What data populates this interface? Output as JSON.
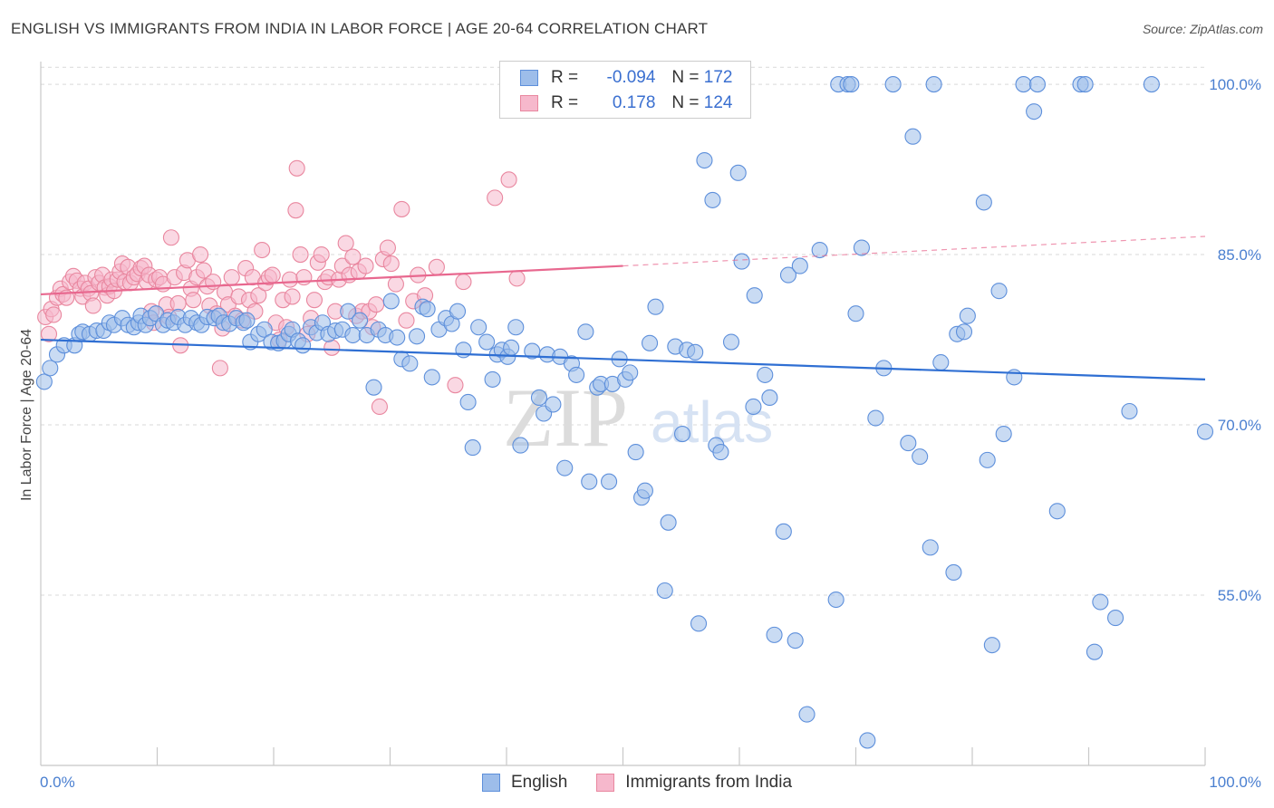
{
  "title": "ENGLISH VS IMMIGRANTS FROM INDIA IN LABOR FORCE | AGE 20-64 CORRELATION CHART",
  "source": "Source: ZipAtlas.com",
  "legend": {
    "rows": [
      {
        "r_label": "R =",
        "r_value": "-0.094",
        "n_label": "N =",
        "n_value": "172"
      },
      {
        "r_label": "R =",
        "r_value": "0.178",
        "n_label": "N =",
        "n_value": "124"
      }
    ]
  },
  "watermark": {
    "main": "ZIP",
    "sub": "atlas"
  },
  "colors": {
    "english_fill": "#9dbdea",
    "english_stroke": "#5d8fdb",
    "english_line": "#2f6fd3",
    "india_fill": "#f6b8cc",
    "india_stroke": "#e9879f",
    "india_line": "#e8688f",
    "grid": "#d9d9d9",
    "tick_text": "#4a7fd0"
  },
  "chart_data": {
    "type": "scatter",
    "title": "ENGLISH VS IMMIGRANTS FROM INDIA IN LABOR FORCE | AGE 20-64 CORRELATION CHART",
    "xlabel": "",
    "ylabel": "In Labor Force | Age 20-64",
    "xlim": [
      0,
      100
    ],
    "ylim": [
      40,
      102
    ],
    "x_tick_labels": [
      "0.0%",
      "100.0%"
    ],
    "y_ticks": [
      55,
      70,
      85,
      100
    ],
    "y_tick_labels": [
      "55.0%",
      "70.0%",
      "85.0%",
      "100.0%"
    ],
    "grid": "horizontal dashed",
    "legend_position": "top-center",
    "series": [
      {
        "name": "English",
        "r": -0.094,
        "n": 172,
        "trend": {
          "x": [
            0,
            100
          ],
          "y": [
            77.5,
            74.0
          ]
        },
        "points": [
          [
            0.3,
            73.8
          ],
          [
            0.8,
            75.0
          ],
          [
            1.4,
            76.2
          ],
          [
            2.0,
            77.0
          ],
          [
            2.9,
            77.0
          ],
          [
            3.3,
            78.0
          ],
          [
            3.6,
            78.2
          ],
          [
            4.2,
            78.0
          ],
          [
            4.8,
            78.3
          ],
          [
            5.4,
            78.3
          ],
          [
            5.9,
            79.0
          ],
          [
            6.3,
            78.8
          ],
          [
            7.0,
            79.4
          ],
          [
            7.5,
            78.8
          ],
          [
            8.0,
            78.6
          ],
          [
            8.4,
            79.0
          ],
          [
            8.6,
            79.6
          ],
          [
            9.0,
            78.8
          ],
          [
            9.4,
            79.4
          ],
          [
            9.9,
            79.8
          ],
          [
            10.5,
            78.8
          ],
          [
            10.9,
            79.2
          ],
          [
            11.4,
            79.0
          ],
          [
            11.8,
            79.5
          ],
          [
            12.4,
            78.8
          ],
          [
            12.9,
            79.4
          ],
          [
            13.4,
            79.0
          ],
          [
            13.8,
            78.8
          ],
          [
            14.3,
            79.5
          ],
          [
            14.9,
            79.4
          ],
          [
            15.3,
            79.6
          ],
          [
            15.7,
            79.0
          ],
          [
            16.2,
            78.9
          ],
          [
            16.8,
            79.4
          ],
          [
            17.4,
            79.0
          ],
          [
            17.7,
            79.2
          ],
          [
            18.0,
            77.3
          ],
          [
            18.7,
            78.0
          ],
          [
            19.2,
            78.4
          ],
          [
            19.8,
            77.3
          ],
          [
            20.4,
            77.2
          ],
          [
            20.9,
            77.4
          ],
          [
            21.3,
            78.0
          ],
          [
            21.6,
            78.4
          ],
          [
            22.1,
            77.4
          ],
          [
            22.5,
            77.0
          ],
          [
            23.2,
            78.6
          ],
          [
            23.7,
            78.1
          ],
          [
            24.2,
            79.0
          ],
          [
            24.7,
            78.0
          ],
          [
            25.3,
            78.3
          ],
          [
            25.9,
            78.4
          ],
          [
            26.4,
            80.0
          ],
          [
            26.8,
            77.9
          ],
          [
            27.4,
            79.2
          ],
          [
            28.0,
            77.9
          ],
          [
            28.6,
            73.3
          ],
          [
            29.0,
            78.4
          ],
          [
            29.6,
            77.9
          ],
          [
            30.1,
            80.9
          ],
          [
            30.6,
            77.7
          ],
          [
            31.0,
            75.8
          ],
          [
            31.7,
            75.4
          ],
          [
            32.3,
            77.8
          ],
          [
            32.8,
            80.4
          ],
          [
            33.2,
            80.2
          ],
          [
            33.6,
            74.2
          ],
          [
            34.2,
            78.4
          ],
          [
            34.8,
            79.4
          ],
          [
            35.3,
            78.9
          ],
          [
            35.8,
            80.0
          ],
          [
            36.3,
            76.6
          ],
          [
            36.7,
            72.0
          ],
          [
            37.1,
            68.0
          ],
          [
            37.6,
            78.6
          ],
          [
            38.3,
            77.3
          ],
          [
            38.8,
            74.0
          ],
          [
            39.2,
            76.2
          ],
          [
            39.6,
            76.6
          ],
          [
            40.1,
            76.0
          ],
          [
            40.4,
            76.8
          ],
          [
            40.8,
            78.6
          ],
          [
            41.2,
            68.2
          ],
          [
            42.2,
            76.5
          ],
          [
            42.8,
            72.4
          ],
          [
            43.2,
            71.0
          ],
          [
            43.5,
            76.2
          ],
          [
            44.0,
            71.8
          ],
          [
            44.6,
            76.0
          ],
          [
            45.0,
            66.2
          ],
          [
            45.6,
            75.4
          ],
          [
            46.0,
            74.4
          ],
          [
            46.8,
            78.2
          ],
          [
            47.1,
            65.0
          ],
          [
            47.8,
            73.3
          ],
          [
            48.1,
            73.6
          ],
          [
            48.8,
            65.0
          ],
          [
            49.1,
            73.6
          ],
          [
            49.7,
            75.8
          ],
          [
            50.2,
            74.0
          ],
          [
            50.6,
            74.6
          ],
          [
            51.1,
            67.6
          ],
          [
            51.6,
            63.6
          ],
          [
            51.9,
            64.2
          ],
          [
            52.3,
            77.2
          ],
          [
            52.8,
            80.4
          ],
          [
            53.6,
            55.4
          ],
          [
            53.9,
            61.4
          ],
          [
            54.5,
            76.9
          ],
          [
            55.1,
            69.2
          ],
          [
            55.5,
            76.6
          ],
          [
            56.2,
            76.4
          ],
          [
            56.5,
            52.5
          ],
          [
            57.0,
            93.3
          ],
          [
            57.7,
            89.8
          ],
          [
            58.0,
            68.2
          ],
          [
            58.4,
            67.6
          ],
          [
            59.3,
            77.3
          ],
          [
            59.9,
            92.2
          ],
          [
            60.2,
            84.4
          ],
          [
            61.2,
            71.6
          ],
          [
            61.3,
            81.4
          ],
          [
            62.2,
            74.4
          ],
          [
            62.6,
            72.4
          ],
          [
            63.0,
            51.5
          ],
          [
            63.8,
            60.6
          ],
          [
            64.2,
            83.2
          ],
          [
            64.8,
            51.0
          ],
          [
            65.2,
            84.0
          ],
          [
            65.8,
            44.5
          ],
          [
            66.9,
            85.4
          ],
          [
            68.3,
            54.6
          ],
          [
            68.5,
            100.0
          ],
          [
            69.3,
            100.0
          ],
          [
            69.6,
            100.0
          ],
          [
            70.0,
            79.8
          ],
          [
            70.5,
            85.6
          ],
          [
            71.0,
            42.2
          ],
          [
            71.7,
            70.6
          ],
          [
            72.4,
            75.0
          ],
          [
            73.2,
            100.0
          ],
          [
            74.5,
            68.4
          ],
          [
            74.9,
            95.4
          ],
          [
            75.5,
            67.2
          ],
          [
            76.4,
            59.2
          ],
          [
            76.7,
            100.0
          ],
          [
            77.3,
            75.5
          ],
          [
            78.4,
            57.0
          ],
          [
            78.7,
            78.0
          ],
          [
            79.3,
            78.2
          ],
          [
            79.6,
            79.6
          ],
          [
            81.0,
            89.6
          ],
          [
            81.3,
            66.9
          ],
          [
            81.7,
            50.6
          ],
          [
            82.3,
            81.8
          ],
          [
            82.7,
            69.2
          ],
          [
            83.6,
            74.2
          ],
          [
            84.4,
            100.0
          ],
          [
            85.3,
            97.6
          ],
          [
            85.6,
            100.0
          ],
          [
            87.3,
            62.4
          ],
          [
            89.3,
            100.0
          ],
          [
            89.7,
            100.0
          ],
          [
            90.5,
            50.0
          ],
          [
            91.0,
            54.4
          ],
          [
            92.3,
            53.0
          ],
          [
            93.5,
            71.2
          ],
          [
            95.4,
            100.0
          ],
          [
            100.0,
            69.4
          ]
        ]
      },
      {
        "name": "Immigrants from India",
        "r": 0.178,
        "n": 124,
        "trend": {
          "x": [
            0,
            50,
            100
          ],
          "y": [
            81.5,
            84.0,
            86.6
          ]
        },
        "points": [
          [
            0.4,
            79.5
          ],
          [
            0.7,
            78.0
          ],
          [
            0.9,
            80.2
          ],
          [
            1.1,
            79.7
          ],
          [
            1.4,
            81.2
          ],
          [
            1.7,
            82.0
          ],
          [
            1.9,
            81.5
          ],
          [
            2.2,
            81.2
          ],
          [
            2.5,
            82.6
          ],
          [
            2.8,
            83.1
          ],
          [
            3.1,
            82.7
          ],
          [
            3.4,
            82.0
          ],
          [
            3.6,
            81.3
          ],
          [
            3.8,
            82.5
          ],
          [
            4.1,
            82.0
          ],
          [
            4.3,
            81.6
          ],
          [
            4.5,
            80.5
          ],
          [
            4.7,
            83.0
          ],
          [
            5.0,
            82.5
          ],
          [
            5.3,
            83.2
          ],
          [
            5.5,
            82.1
          ],
          [
            5.7,
            81.4
          ],
          [
            5.9,
            82.2
          ],
          [
            6.1,
            82.8
          ],
          [
            6.3,
            81.8
          ],
          [
            6.6,
            82.8
          ],
          [
            6.8,
            83.5
          ],
          [
            7.0,
            84.2
          ],
          [
            7.2,
            82.6
          ],
          [
            7.5,
            83.9
          ],
          [
            7.7,
            82.5
          ],
          [
            8.0,
            83.0
          ],
          [
            8.3,
            83.3
          ],
          [
            8.6,
            83.8
          ],
          [
            8.9,
            84.0
          ],
          [
            9.1,
            82.6
          ],
          [
            9.3,
            83.2
          ],
          [
            9.5,
            80.0
          ],
          [
            9.7,
            79.0
          ],
          [
            9.9,
            82.8
          ],
          [
            10.2,
            83.0
          ],
          [
            10.5,
            82.4
          ],
          [
            10.8,
            80.6
          ],
          [
            11.0,
            79.5
          ],
          [
            11.2,
            86.5
          ],
          [
            11.5,
            83.0
          ],
          [
            11.8,
            80.7
          ],
          [
            12.0,
            77.0
          ],
          [
            12.3,
            83.4
          ],
          [
            12.6,
            84.5
          ],
          [
            12.9,
            82.0
          ],
          [
            13.1,
            81.0
          ],
          [
            13.4,
            83.0
          ],
          [
            13.7,
            85.0
          ],
          [
            14.0,
            83.6
          ],
          [
            14.3,
            82.2
          ],
          [
            14.5,
            80.5
          ],
          [
            14.8,
            82.6
          ],
          [
            15.1,
            79.8
          ],
          [
            15.4,
            75.0
          ],
          [
            15.6,
            78.5
          ],
          [
            15.8,
            81.7
          ],
          [
            16.1,
            80.6
          ],
          [
            16.4,
            83.0
          ],
          [
            16.7,
            79.6
          ],
          [
            17.0,
            81.3
          ],
          [
            17.3,
            79.2
          ],
          [
            17.6,
            83.8
          ],
          [
            17.9,
            81.0
          ],
          [
            18.2,
            83.0
          ],
          [
            18.4,
            80.0
          ],
          [
            18.7,
            81.4
          ],
          [
            19.0,
            85.4
          ],
          [
            19.3,
            82.5
          ],
          [
            19.6,
            83.0
          ],
          [
            19.9,
            83.2
          ],
          [
            20.2,
            79.0
          ],
          [
            20.5,
            77.5
          ],
          [
            20.8,
            81.0
          ],
          [
            21.1,
            78.6
          ],
          [
            21.4,
            82.8
          ],
          [
            21.6,
            81.3
          ],
          [
            21.9,
            88.9
          ],
          [
            22.0,
            92.6
          ],
          [
            22.3,
            85.0
          ],
          [
            22.6,
            83.0
          ],
          [
            22.9,
            78.0
          ],
          [
            23.2,
            79.4
          ],
          [
            23.5,
            81.0
          ],
          [
            23.8,
            84.3
          ],
          [
            24.1,
            85.0
          ],
          [
            24.4,
            82.6
          ],
          [
            24.7,
            83.0
          ],
          [
            25.0,
            76.8
          ],
          [
            25.3,
            80.0
          ],
          [
            25.6,
            82.8
          ],
          [
            25.9,
            84.0
          ],
          [
            26.2,
            86.0
          ],
          [
            26.5,
            83.2
          ],
          [
            26.8,
            84.8
          ],
          [
            27.1,
            79.6
          ],
          [
            27.3,
            83.5
          ],
          [
            27.6,
            80.0
          ],
          [
            27.9,
            84.0
          ],
          [
            28.2,
            80.0
          ],
          [
            28.5,
            78.6
          ],
          [
            28.8,
            80.6
          ],
          [
            29.1,
            71.6
          ],
          [
            29.4,
            84.6
          ],
          [
            29.8,
            85.6
          ],
          [
            30.1,
            84.2
          ],
          [
            30.5,
            82.4
          ],
          [
            31.0,
            89.0
          ],
          [
            31.4,
            79.2
          ],
          [
            32.0,
            80.9
          ],
          [
            32.4,
            83.2
          ],
          [
            33.0,
            81.4
          ],
          [
            34.0,
            83.9
          ],
          [
            35.6,
            73.5
          ],
          [
            36.3,
            82.6
          ],
          [
            39.0,
            90.0
          ],
          [
            40.2,
            91.6
          ],
          [
            40.9,
            82.9
          ]
        ]
      }
    ]
  }
}
